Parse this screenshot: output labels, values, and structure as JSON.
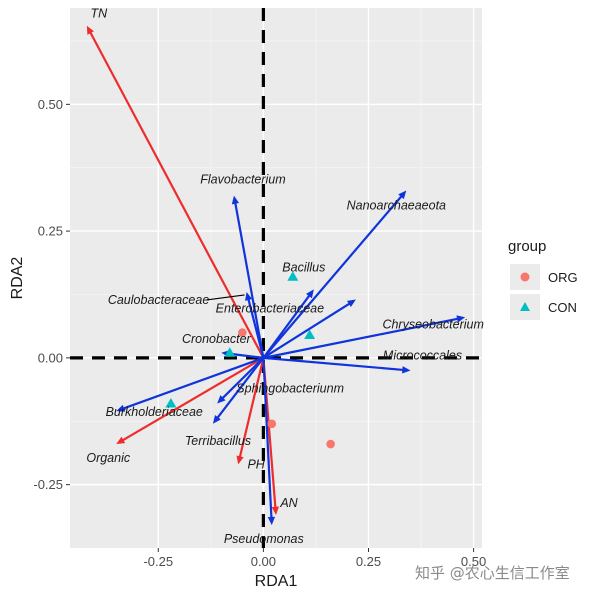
{
  "chart_data": {
    "type": "scatter",
    "title": "",
    "xlabel": "RDA1",
    "ylabel": "RDA2",
    "xlim": [
      -0.46,
      0.52
    ],
    "ylim": [
      -0.375,
      0.69
    ],
    "xticks": [
      -0.25,
      0.0,
      0.25,
      0.5
    ],
    "xtick_labels": [
      "-0.25",
      "0.00",
      "0.25",
      "0.50"
    ],
    "yticks": [
      -0.25,
      0.0,
      0.25,
      0.5
    ],
    "ytick_labels": [
      "-0.25",
      "0.00",
      "0.25",
      "0.50"
    ],
    "grid": true,
    "reference_lines": {
      "x": 0,
      "y": 0,
      "style": "dashed"
    },
    "legend": {
      "title": "group",
      "position": "right",
      "entries": [
        {
          "label": "ORG",
          "color": "#F8766D",
          "shape": "circle"
        },
        {
          "label": "CON",
          "color": "#00BFC4",
          "shape": "triangle"
        }
      ]
    },
    "points": [
      {
        "group": "ORG",
        "x": -0.05,
        "y": 0.05
      },
      {
        "group": "ORG",
        "x": 0.02,
        "y": -0.13
      },
      {
        "group": "ORG",
        "x": 0.16,
        "y": -0.17
      },
      {
        "group": "CON",
        "x": 0.07,
        "y": 0.16
      },
      {
        "group": "CON",
        "x": 0.11,
        "y": 0.045
      },
      {
        "group": "CON",
        "x": -0.08,
        "y": 0.01
      },
      {
        "group": "CON",
        "x": -0.22,
        "y": -0.09
      }
    ],
    "env_arrows": {
      "color": "#EE2C2C",
      "items": [
        {
          "name": "TN",
          "x": -0.42,
          "y": 0.655
        },
        {
          "name": "Organic",
          "x": -0.35,
          "y": -0.17
        },
        {
          "name": "PH",
          "x": -0.06,
          "y": -0.21
        },
        {
          "name": "AN",
          "x": 0.03,
          "y": -0.31
        }
      ]
    },
    "species_arrows": {
      "color": "#1034DC",
      "items": [
        {
          "name": "Flavobacterium",
          "x": -0.07,
          "y": 0.32
        },
        {
          "name": "Nanoarchaeaeota",
          "x": 0.34,
          "y": 0.33
        },
        {
          "name": "Bacillus",
          "x": 0.12,
          "y": 0.135
        },
        {
          "name": "Caulobacteraceae",
          "x": -0.04,
          "y": 0.13
        },
        {
          "name": "Enterobacteriaceae",
          "x": 0.22,
          "y": 0.115
        },
        {
          "name": "Chryseobacterium",
          "x": 0.48,
          "y": 0.08
        },
        {
          "name": "Cronobacter",
          "x": -0.1,
          "y": 0.01
        },
        {
          "name": "Micrococcales",
          "x": 0.35,
          "y": -0.025
        },
        {
          "name": "Sphingobacteriunm",
          "x": -0.11,
          "y": -0.09
        },
        {
          "name": "Burkholderiaceae",
          "x": -0.35,
          "y": -0.105
        },
        {
          "name": "Terribacillus",
          "x": -0.12,
          "y": -0.13
        },
        {
          "name": "Pseudomonas",
          "x": 0.02,
          "y": -0.33
        }
      ]
    }
  },
  "watermark": "知乎 @农心生信工作室"
}
